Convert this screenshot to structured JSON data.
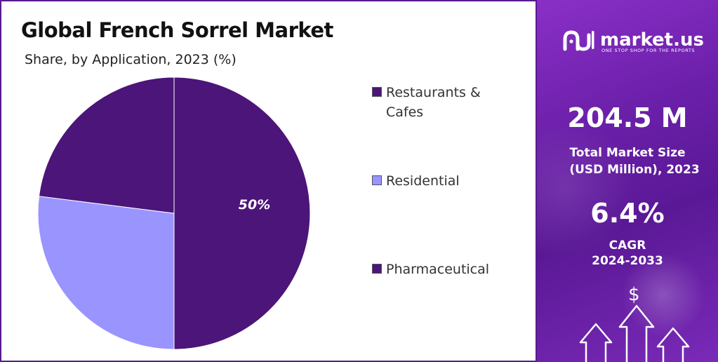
{
  "chart_data": {
    "type": "pie",
    "title": "Global French Sorrel Market",
    "subtitle": "Share, by Application, 2023 (%)",
    "categories": [
      "Restaurants & Cafes",
      "Residential",
      "Pharmaceutical"
    ],
    "values": [
      50,
      27,
      23
    ],
    "data_labels": [
      "50%",
      "",
      ""
    ],
    "legend_position": "right"
  },
  "colors": {
    "Restaurants & Cafes": "#4b1579",
    "Residential": "#9a94ff",
    "Pharmaceutical": "#4b1579",
    "label_text": "#ffffff"
  },
  "legend": {
    "items": [
      {
        "label_line1": "Restaurants &",
        "label_line2": "Cafes"
      },
      {
        "label_line1": "Residential"
      },
      {
        "label_line1": "Pharmaceutical"
      }
    ]
  },
  "brand": {
    "name": "market.us",
    "tagline": "ONE STOP SHOP FOR THE REPORTS"
  },
  "stats": {
    "market_size_value": "204.5 M",
    "market_size_label_line1": "Total Market Size",
    "market_size_label_line2": "(USD Million), 2023",
    "cagr_value": "6.4%",
    "cagr_label_line1": "CAGR",
    "cagr_label_line2": "2024-2033"
  },
  "icons": {
    "currency": "$",
    "growth": "up-arrow-icon"
  }
}
